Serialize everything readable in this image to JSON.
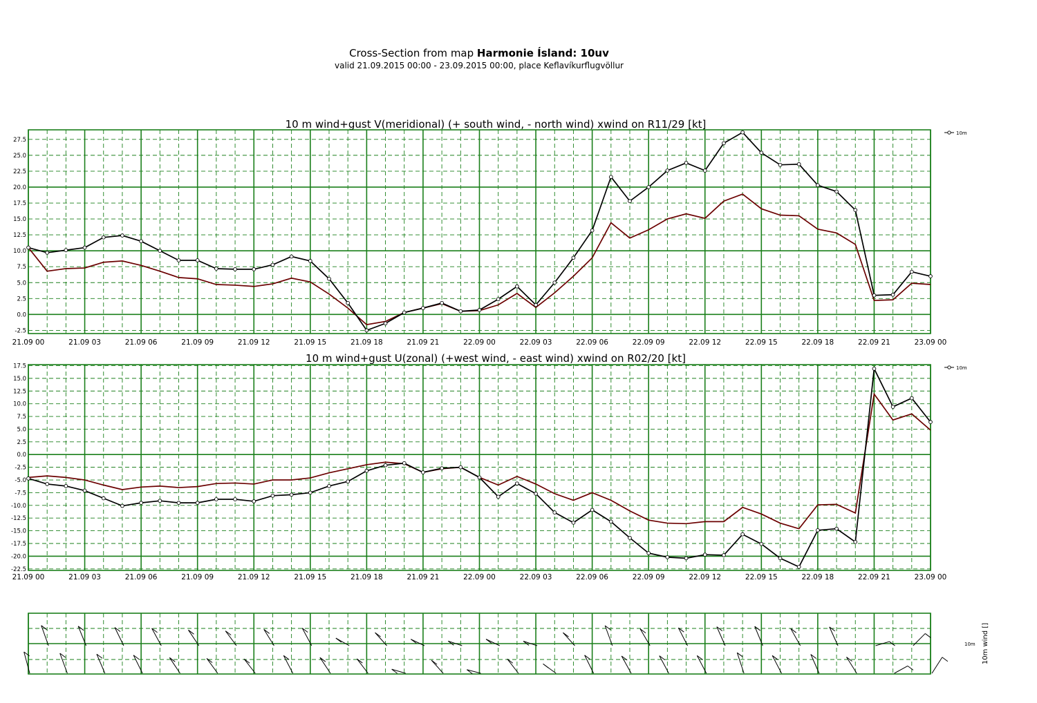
{
  "header": {
    "title_prefix": "Cross-Section from map",
    "title_bold": "Harmonie Ísland: 10uv",
    "subtitle": "valid 21.09.2015 00:00 - 23.09.2015 00:00, place Keflavíkurflugvöllur"
  },
  "colors": {
    "grid": "#1a7f1a",
    "wind": "#000000",
    "gust": "#6b0000"
  },
  "x_tick_labels": [
    "21.09 00",
    "21.09 03",
    "21.09 06",
    "21.09 09",
    "21.09 12",
    "21.09 15",
    "21.09 18",
    "21.09 21",
    "22.09 00",
    "22.09 03",
    "22.09 06",
    "22.09 09",
    "22.09 12",
    "22.09 15",
    "22.09 18",
    "22.09 21",
    "23.09 00"
  ],
  "chart_data": [
    {
      "type": "line",
      "title": "10 m wind+gust V(meridional) (+ south wind, - north wind) xwind on R11/29 [kt]",
      "x_hours": [
        0,
        1,
        2,
        3,
        4,
        5,
        6,
        7,
        8,
        9,
        10,
        11,
        12,
        13,
        14,
        15,
        16,
        17,
        18,
        19,
        20,
        21,
        22,
        23,
        24,
        25,
        26,
        27,
        28,
        29,
        30,
        31,
        32,
        33,
        34,
        35,
        36,
        37,
        38,
        39,
        40,
        41,
        42,
        43,
        44,
        45,
        46,
        47,
        48
      ],
      "ylim": [
        -3.0,
        29.0
      ],
      "yticks": [
        "27.5",
        "25.0",
        "22.5",
        "20.0",
        "17.5",
        "15.0",
        "12.5",
        "10.0",
        "7.5",
        "5.0",
        "2.5",
        "0.0",
        "-2.5"
      ],
      "legend": "10m",
      "series": [
        {
          "name": "10m",
          "marker": "circle",
          "values": [
            10.5,
            9.7,
            10.1,
            10.5,
            12.1,
            12.4,
            11.5,
            10.0,
            8.5,
            8.5,
            7.2,
            7.1,
            7.1,
            7.8,
            9.1,
            8.4,
            5.6,
            1.8,
            -2.5,
            -1.4,
            0.3,
            1.0,
            1.8,
            0.5,
            0.7,
            2.4,
            4.4,
            1.5,
            5.0,
            8.9,
            13.2,
            21.6,
            17.8,
            20.0,
            22.6,
            23.8,
            22.6,
            26.9,
            28.6,
            25.4,
            23.5,
            23.6,
            20.3,
            19.3,
            16.4,
            3.0,
            3.1,
            6.7,
            6.0
          ]
        },
        {
          "values": [
            10.5,
            6.8,
            7.2,
            7.3,
            8.2,
            8.4,
            7.7,
            6.8,
            5.8,
            5.6,
            4.7,
            4.6,
            4.4,
            4.8,
            5.7,
            5.1,
            3.2,
            1.0,
            -1.6,
            -1.1,
            0.3,
            1.0,
            1.7,
            0.5,
            0.6,
            1.5,
            3.3,
            1.1,
            3.4,
            6.0,
            8.9,
            14.4,
            12.0,
            13.3,
            15.0,
            15.8,
            15.1,
            17.8,
            18.9,
            16.6,
            15.6,
            15.5,
            13.4,
            12.8,
            11.0,
            2.2,
            2.3,
            4.9,
            4.7
          ]
        }
      ]
    },
    {
      "type": "line",
      "title": "10 m wind+gust U(zonal) (+west wind, - east wind) xwind on R02/20 [kt]",
      "x_hours": [
        0,
        1,
        2,
        3,
        4,
        5,
        6,
        7,
        8,
        9,
        10,
        11,
        12,
        13,
        14,
        15,
        16,
        17,
        18,
        19,
        20,
        21,
        22,
        23,
        24,
        25,
        26,
        27,
        28,
        29,
        30,
        31,
        32,
        33,
        34,
        35,
        36,
        37,
        38,
        39,
        40,
        41,
        42,
        43,
        44,
        45,
        46,
        47,
        48
      ],
      "ylim": [
        -22.8,
        17.7
      ],
      "yticks": [
        "17.5",
        "15.0",
        "12.5",
        "10.0",
        "7.5",
        "5.0",
        "2.5",
        "0.0",
        "-2.5",
        "-5.0",
        "-7.5",
        "-10.0",
        "-12.5",
        "-15.0",
        "-17.5",
        "-20.0",
        "-22.5"
      ],
      "legend": "10m",
      "series": [
        {
          "name": "10m",
          "marker": "circle",
          "values": [
            -4.7,
            -5.8,
            -6.2,
            -7.1,
            -8.6,
            -10.1,
            -9.5,
            -9.1,
            -9.5,
            -9.5,
            -8.8,
            -8.8,
            -9.2,
            -8.1,
            -7.9,
            -7.5,
            -6.2,
            -5.3,
            -3.2,
            -2.1,
            -1.7,
            -3.5,
            -2.7,
            -2.5,
            -4.5,
            -8.3,
            -5.7,
            -7.7,
            -11.4,
            -13.4,
            -10.9,
            -13.2,
            -16.4,
            -19.4,
            -20.2,
            -20.4,
            -19.7,
            -19.8,
            -15.7,
            -17.6,
            -20.4,
            -22.1,
            -14.9,
            -14.6,
            -17.2,
            16.9,
            9.4,
            11.1,
            6.4
          ]
        },
        {
          "values": [
            -4.5,
            -4.2,
            -4.5,
            -5.0,
            -6.0,
            -6.9,
            -6.4,
            -6.2,
            -6.5,
            -6.3,
            -5.7,
            -5.6,
            -5.8,
            -5.0,
            -5.0,
            -4.6,
            -3.6,
            -2.8,
            -2.0,
            -1.5,
            -1.8,
            -3.5,
            -2.8,
            -2.5,
            -4.5,
            -6.0,
            -4.3,
            -5.8,
            -7.7,
            -9.0,
            -7.5,
            -9.0,
            -11.1,
            -12.9,
            -13.5,
            -13.6,
            -13.2,
            -13.2,
            -10.4,
            -11.7,
            -13.5,
            -14.6,
            -9.9,
            -9.8,
            -11.5,
            11.9,
            6.8,
            8.0,
            4.8
          ]
        }
      ]
    },
    {
      "type": "barbs",
      "ylabel": "10m wind []",
      "level_label": "10m"
    }
  ]
}
